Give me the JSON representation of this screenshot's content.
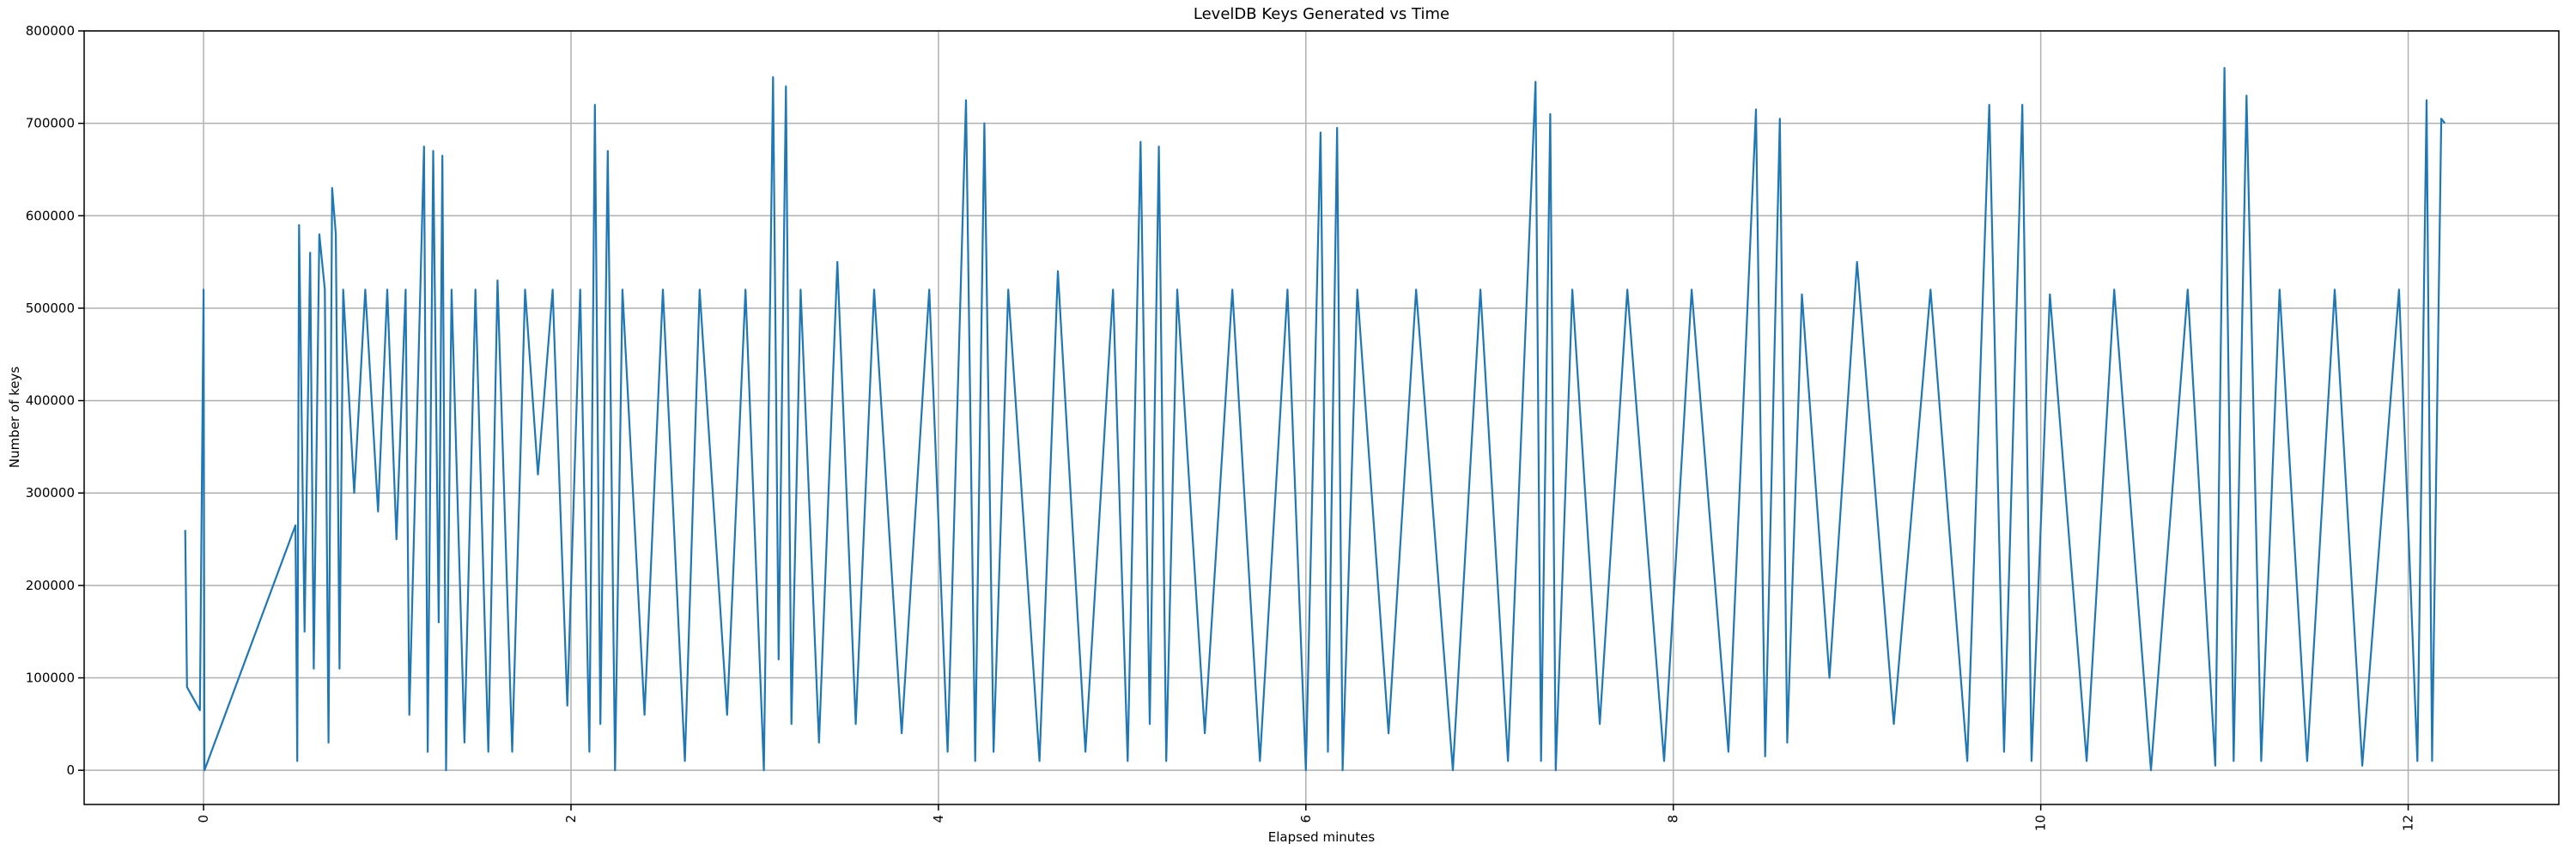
{
  "chart_data": {
    "type": "line",
    "title": "LevelDB Keys Generated vs Time",
    "x_label": "Elapsed minutes",
    "y_label": "Number of keys",
    "color": "#1f77b4",
    "grid": true,
    "xlim": [
      -0.65,
      12.82
    ],
    "ylim": [
      -37000,
      800000
    ],
    "xticks": [
      0,
      2,
      4,
      6,
      8,
      10,
      12
    ],
    "yticks": [
      0,
      100000,
      200000,
      300000,
      400000,
      500000,
      600000,
      700000,
      800000
    ],
    "x": [
      -0.1,
      -0.09,
      -0.02,
      0.0,
      0.005,
      0.5,
      0.51,
      0.52,
      0.55,
      0.58,
      0.6,
      0.63,
      0.66,
      0.68,
      0.7,
      0.72,
      0.74,
      0.76,
      0.82,
      0.88,
      0.95,
      1.0,
      1.05,
      1.1,
      1.12,
      1.18,
      1.2,
      1.22,
      1.25,
      1.28,
      1.3,
      1.32,
      1.35,
      1.42,
      1.48,
      1.55,
      1.6,
      1.68,
      1.75,
      1.82,
      1.9,
      1.98,
      2.05,
      2.1,
      2.13,
      2.16,
      2.2,
      2.24,
      2.28,
      2.4,
      2.5,
      2.62,
      2.7,
      2.85,
      2.95,
      3.05,
      3.1,
      3.13,
      3.17,
      3.2,
      3.25,
      3.35,
      3.45,
      3.55,
      3.65,
      3.8,
      3.95,
      4.05,
      4.15,
      4.2,
      4.25,
      4.3,
      4.38,
      4.55,
      4.65,
      4.8,
      4.95,
      5.03,
      5.1,
      5.15,
      5.2,
      5.24,
      5.3,
      5.45,
      5.6,
      5.75,
      5.9,
      6.0,
      6.08,
      6.12,
      6.17,
      6.2,
      6.28,
      6.45,
      6.6,
      6.8,
      6.95,
      7.1,
      7.25,
      7.28,
      7.33,
      7.36,
      7.45,
      7.6,
      7.75,
      7.95,
      8.1,
      8.3,
      8.45,
      8.5,
      8.58,
      8.62,
      8.7,
      8.85,
      9.0,
      9.2,
      9.4,
      9.6,
      9.72,
      9.8,
      9.9,
      9.95,
      10.05,
      10.25,
      10.4,
      10.6,
      10.8,
      10.95,
      11.0,
      11.05,
      11.12,
      11.2,
      11.3,
      11.45,
      11.6,
      11.75,
      11.95,
      12.05,
      12.1,
      12.13,
      12.18,
      12.2
    ],
    "values": [
      260000,
      90000,
      65000,
      520000,
      0,
      265000,
      10000,
      590000,
      150000,
      560000,
      110000,
      580000,
      520000,
      30000,
      630000,
      580000,
      110000,
      520000,
      300000,
      520000,
      280000,
      520000,
      250000,
      520000,
      60000,
      520000,
      675000,
      20000,
      670000,
      160000,
      665000,
      0,
      520000,
      30000,
      520000,
      20000,
      530000,
      20000,
      520000,
      320000,
      520000,
      70000,
      520000,
      20000,
      720000,
      50000,
      670000,
      0,
      520000,
      60000,
      520000,
      10000,
      520000,
      60000,
      520000,
      0,
      750000,
      120000,
      740000,
      50000,
      520000,
      30000,
      550000,
      50000,
      520000,
      40000,
      520000,
      20000,
      725000,
      10000,
      700000,
      20000,
      520000,
      10000,
      540000,
      20000,
      520000,
      10000,
      680000,
      50000,
      675000,
      10000,
      520000,
      40000,
      520000,
      10000,
      520000,
      0,
      690000,
      20000,
      695000,
      0,
      520000,
      40000,
      520000,
      0,
      520000,
      10000,
      745000,
      10000,
      710000,
      0,
      520000,
      50000,
      520000,
      10000,
      520000,
      20000,
      715000,
      15000,
      705000,
      30000,
      515000,
      100000,
      550000,
      50000,
      520000,
      10000,
      720000,
      20000,
      720000,
      10000,
      515000,
      10000,
      520000,
      0,
      520000,
      5000,
      760000,
      10000,
      730000,
      10000,
      520000,
      10000,
      520000,
      5000,
      520000,
      10000,
      725000,
      10000,
      705000,
      700000
    ]
  }
}
